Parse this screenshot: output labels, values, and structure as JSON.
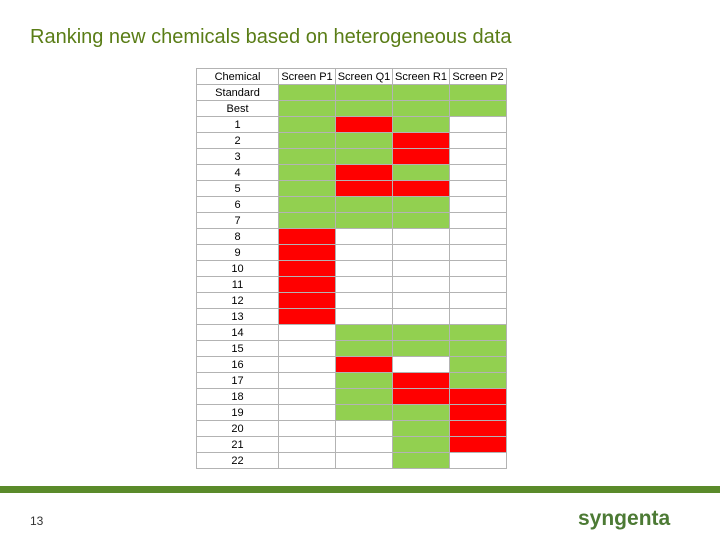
{
  "slide": {
    "title": "Ranking new chemicals based on heterogeneous data",
    "page_number": "13",
    "logo_text": "syngenta"
  },
  "colors": {
    "title": "#5a7d16",
    "green": "#92d050",
    "red": "#ff0000",
    "footer_bar": "#5a8a2a",
    "logo": "#4c7a34"
  },
  "table": {
    "headers": [
      "Chemical",
      "Screen P1",
      "Screen Q1",
      "Screen R1",
      "Screen P2"
    ],
    "legend": {
      "g": "green",
      "r": "red",
      "w": "white"
    },
    "rows": [
      {
        "label": "Standard",
        "cells": [
          "g",
          "g",
          "g",
          "g"
        ]
      },
      {
        "label": "Best",
        "cells": [
          "g",
          "g",
          "g",
          "g"
        ]
      },
      {
        "label": "1",
        "cells": [
          "g",
          "r",
          "g",
          "w"
        ]
      },
      {
        "label": "2",
        "cells": [
          "g",
          "g",
          "r",
          "w"
        ]
      },
      {
        "label": "3",
        "cells": [
          "g",
          "g",
          "r",
          "w"
        ]
      },
      {
        "label": "4",
        "cells": [
          "g",
          "r",
          "g",
          "w"
        ]
      },
      {
        "label": "5",
        "cells": [
          "g",
          "r",
          "r",
          "w"
        ]
      },
      {
        "label": "6",
        "cells": [
          "g",
          "g",
          "g",
          "w"
        ]
      },
      {
        "label": "7",
        "cells": [
          "g",
          "g",
          "g",
          "w"
        ]
      },
      {
        "label": "8",
        "cells": [
          "r",
          "w",
          "w",
          "w"
        ]
      },
      {
        "label": "9",
        "cells": [
          "r",
          "w",
          "w",
          "w"
        ]
      },
      {
        "label": "10",
        "cells": [
          "r",
          "w",
          "w",
          "w"
        ]
      },
      {
        "label": "11",
        "cells": [
          "r",
          "w",
          "w",
          "w"
        ]
      },
      {
        "label": "12",
        "cells": [
          "r",
          "w",
          "w",
          "w"
        ]
      },
      {
        "label": "13",
        "cells": [
          "r",
          "w",
          "w",
          "w"
        ]
      },
      {
        "label": "14",
        "cells": [
          "w",
          "g",
          "g",
          "g"
        ]
      },
      {
        "label": "15",
        "cells": [
          "w",
          "g",
          "g",
          "g"
        ]
      },
      {
        "label": "16",
        "cells": [
          "w",
          "r",
          "w",
          "g"
        ]
      },
      {
        "label": "17",
        "cells": [
          "w",
          "g",
          "r",
          "g"
        ]
      },
      {
        "label": "18",
        "cells": [
          "w",
          "g",
          "r",
          "r"
        ]
      },
      {
        "label": "19",
        "cells": [
          "w",
          "g",
          "g",
          "r"
        ]
      },
      {
        "label": "20",
        "cells": [
          "w",
          "w",
          "g",
          "r"
        ]
      },
      {
        "label": "21",
        "cells": [
          "w",
          "w",
          "g",
          "r"
        ]
      },
      {
        "label": "22",
        "cells": [
          "w",
          "w",
          "g",
          "w"
        ]
      }
    ]
  }
}
